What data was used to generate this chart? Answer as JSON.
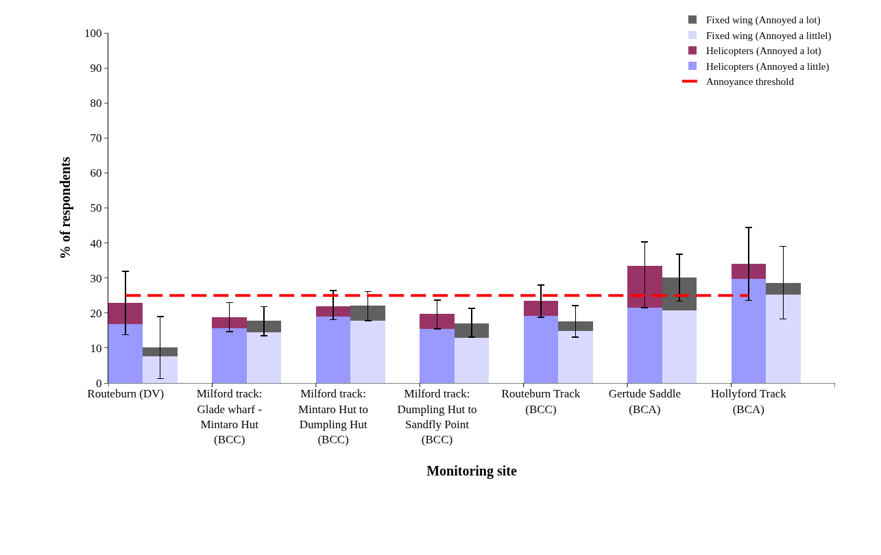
{
  "chart_data": {
    "type": "bar",
    "stacked": true,
    "xlabel": "Monitoring site",
    "ylabel": "% of respondents",
    "categories": [
      "Routeburn (DV)",
      null,
      null,
      "Milford track: Glade wharf - Mintaro Hut (BCC)",
      null,
      null,
      "Milford track: Mintaro Hut to Dumpling Hut (BCC)",
      null,
      null,
      "Milford track: Dumpling Hut to Sandfly Point (BCC)",
      null,
      null,
      "Routeburn Track (BCC)",
      null,
      null,
      "Gertude Saddle (BCA)",
      null,
      null,
      "Hollyford Track (BCA)",
      null,
      null
    ],
    "series": [
      {
        "name": "Helicopters (Annoyed a little)",
        "color": "#9999ff",
        "values": [
          16.8,
          null,
          null,
          15.6,
          null,
          null,
          18.9,
          null,
          null,
          15.5,
          null,
          null,
          19.1,
          null,
          null,
          21.6,
          null,
          null,
          29.7,
          null,
          null
        ]
      },
      {
        "name": "Helicopters (Annoyed a lot)",
        "color": "#993366",
        "values": [
          6.0,
          null,
          null,
          3.1,
          null,
          null,
          3.1,
          null,
          null,
          4.3,
          null,
          null,
          4.4,
          null,
          null,
          11.8,
          null,
          null,
          4.3,
          null,
          null
        ],
        "errors": [
          [
            13.8,
            31.9
          ],
          null,
          null,
          [
            14.7,
            23.0
          ],
          null,
          null,
          [
            18.1,
            26.4
          ],
          null,
          null,
          [
            15.5,
            23.7
          ],
          null,
          null,
          [
            18.8,
            28.0
          ],
          null,
          null,
          [
            21.5,
            40.3
          ],
          null,
          null,
          [
            23.6,
            44.4
          ],
          null,
          null
        ]
      },
      {
        "name": "Fixed wing (Annoyed a littlel)",
        "color": "#d9d9ff",
        "values": [
          null,
          7.7,
          null,
          null,
          14.5,
          null,
          null,
          17.8,
          null,
          null,
          12.9,
          null,
          null,
          14.9,
          null,
          null,
          20.7,
          null,
          null,
          25.3,
          null
        ]
      },
      {
        "name": "Fixed wing (Annoyed a lot)",
        "color": "#606060",
        "values": [
          null,
          2.4,
          null,
          null,
          3.3,
          null,
          null,
          4.3,
          null,
          null,
          4.1,
          null,
          null,
          2.7,
          null,
          null,
          9.4,
          null,
          null,
          3.2,
          null
        ],
        "errors": [
          null,
          [
            1.3,
            19.0
          ],
          null,
          null,
          [
            13.5,
            21.8
          ],
          null,
          null,
          [
            17.8,
            26.1
          ],
          null,
          null,
          [
            13.1,
            21.3
          ],
          null,
          null,
          [
            13.1,
            22.1
          ],
          null,
          null,
          [
            23.4,
            36.8
          ],
          null,
          null,
          [
            18.3,
            39.0
          ],
          null
        ]
      },
      {
        "name": "Annoyance threshold",
        "type": "line",
        "color": "#ff0000",
        "line_style": "dashed",
        "values": [
          25,
          25,
          25,
          25,
          25,
          25,
          25,
          25,
          25,
          25,
          25,
          25,
          25,
          25,
          25,
          25,
          25,
          25,
          25,
          null,
          null
        ]
      }
    ],
    "ylim": [
      0,
      100
    ],
    "yticks": [
      0,
      10,
      20,
      30,
      40,
      50,
      60,
      70,
      80,
      90,
      100
    ],
    "legend": "top right"
  }
}
